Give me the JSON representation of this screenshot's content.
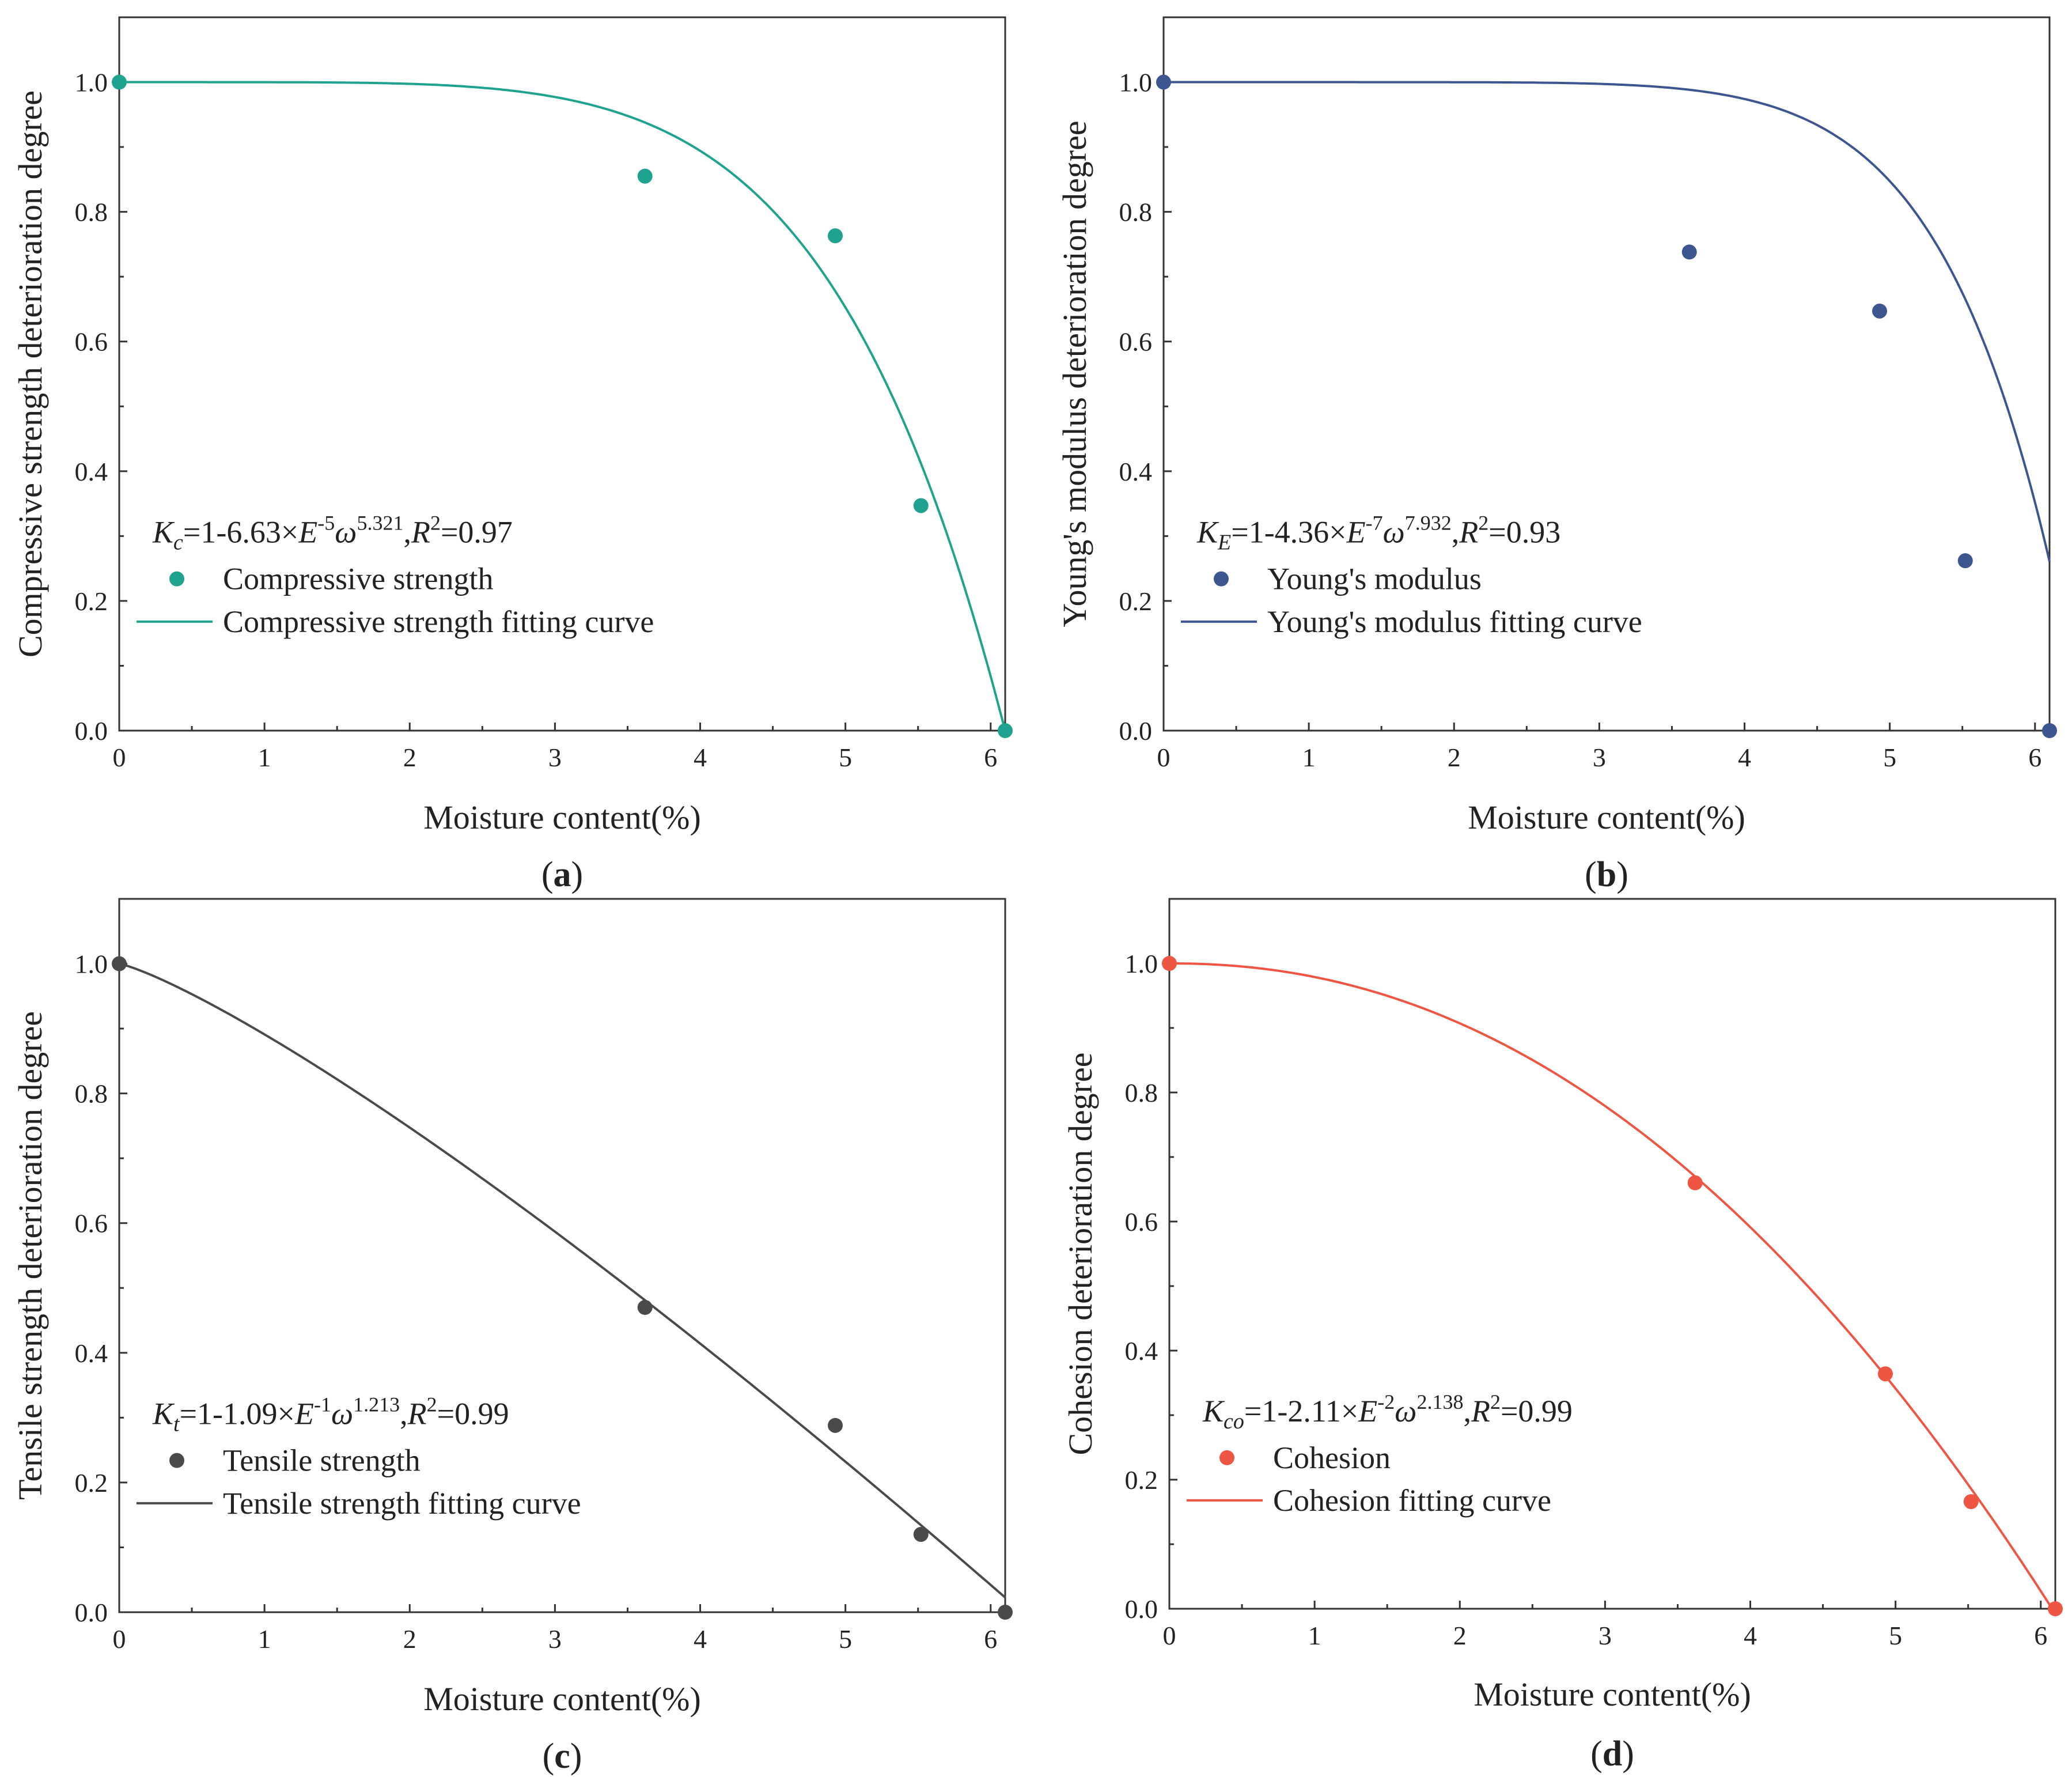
{
  "chart_data": [
    {
      "type": "scatter",
      "panel": "a",
      "panel_label": "a",
      "xlabel": "Moisture content(%)",
      "ylabel": "Compressive strength deterioration degree",
      "xlim": [
        0,
        6.1
      ],
      "ylim": [
        0,
        1.1
      ],
      "xticks": [
        0,
        1,
        2,
        3,
        4,
        5,
        6
      ],
      "yticks": [
        0.0,
        0.2,
        0.4,
        0.6,
        0.8,
        1.0
      ],
      "color": "#1fa38f",
      "equation": {
        "lhs": "K",
        "sub": "c",
        "mid": "=1-6.63×",
        "E": "E",
        "eexp": "-5",
        "w": "ω",
        "wexp": "5.321",
        "r": "R",
        "rexp": "2",
        "rval": "=0.97"
      },
      "points_label": "Compressive strength",
      "curve_label": "Compressive strength fitting curve",
      "points": {
        "x": [
          0,
          3.62,
          4.93,
          5.52,
          6.1
        ],
        "y": [
          1.0,
          0.855,
          0.763,
          0.347,
          0.0
        ]
      },
      "fit": {
        "a": 6.63e-05,
        "b": 5.321
      }
    },
    {
      "type": "scatter",
      "panel": "b",
      "panel_label": "b",
      "xlabel": "Moisture content(%)",
      "ylabel": "Young's modulus deterioration degree",
      "xlim": [
        0,
        6.1
      ],
      "ylim": [
        0,
        1.1
      ],
      "xticks": [
        0,
        1,
        2,
        3,
        4,
        5,
        6
      ],
      "yticks": [
        0.0,
        0.2,
        0.4,
        0.6,
        0.8,
        1.0
      ],
      "color": "#3d5690",
      "equation": {
        "lhs": "K",
        "sub": "E",
        "mid": "=1-4.36×",
        "E": "E",
        "eexp": "-7",
        "w": "ω",
        "wexp": "7.932",
        "r": "R",
        "rexp": "2",
        "rval": "=0.93"
      },
      "points_label": "Young's modulus",
      "curve_label": "Young's modulus fitting curve",
      "points": {
        "x": [
          0,
          3.62,
          4.93,
          5.52,
          6.1
        ],
        "y": [
          1.0,
          0.738,
          0.647,
          0.262,
          0.0
        ]
      },
      "fit": {
        "a": 4.36e-07,
        "b": 7.932
      }
    },
    {
      "type": "scatter",
      "panel": "c",
      "panel_label": "c",
      "xlabel": "Moisture content(%)",
      "ylabel": "Tensile strength deterioration degree",
      "xlim": [
        0,
        6.1
      ],
      "ylim": [
        0,
        1.1
      ],
      "xticks": [
        0,
        1,
        2,
        3,
        4,
        5,
        6
      ],
      "yticks": [
        0.0,
        0.2,
        0.4,
        0.6,
        0.8,
        1.0
      ],
      "color": "#4a4a4a",
      "equation": {
        "lhs": "K",
        "sub": "t",
        "mid": "=1-1.09×",
        "E": "E",
        "eexp": "-1",
        "w": "ω",
        "wexp": "1.213",
        "r": "R",
        "rexp": "2",
        "rval": "=0.99"
      },
      "points_label": "Tensile strength",
      "curve_label": "Tensile strength fitting curve",
      "points": {
        "x": [
          0,
          3.62,
          4.93,
          5.52,
          6.1
        ],
        "y": [
          1.0,
          0.47,
          0.288,
          0.12,
          0.0
        ]
      },
      "fit": {
        "a": 0.109,
        "b": 1.213
      }
    },
    {
      "type": "scatter",
      "panel": "d",
      "panel_label": "d",
      "xlabel": "Moisture content(%)",
      "ylabel": "Cohesion deterioration degree",
      "xlim": [
        0,
        6.1
      ],
      "ylim": [
        0,
        1.1
      ],
      "xticks": [
        0,
        1,
        2,
        3,
        4,
        5,
        6
      ],
      "yticks": [
        0.0,
        0.2,
        0.4,
        0.6,
        0.8,
        1.0
      ],
      "color": "#ee5543",
      "equation": {
        "lhs": "K",
        "sub": "co",
        "mid": "=1-2.11×",
        "E": "E",
        "eexp": "-2",
        "w": "ω",
        "wexp": "2.138",
        "r": "R",
        "rexp": "2",
        "rval": "=0.99"
      },
      "points_label": "Cohesion",
      "curve_label": "Cohesion fitting curve",
      "points": {
        "x": [
          0,
          3.62,
          4.93,
          5.52,
          6.1
        ],
        "y": [
          1.0,
          0.66,
          0.364,
          0.166,
          0.0
        ]
      },
      "fit": {
        "a": 0.0211,
        "b": 2.138
      }
    }
  ]
}
